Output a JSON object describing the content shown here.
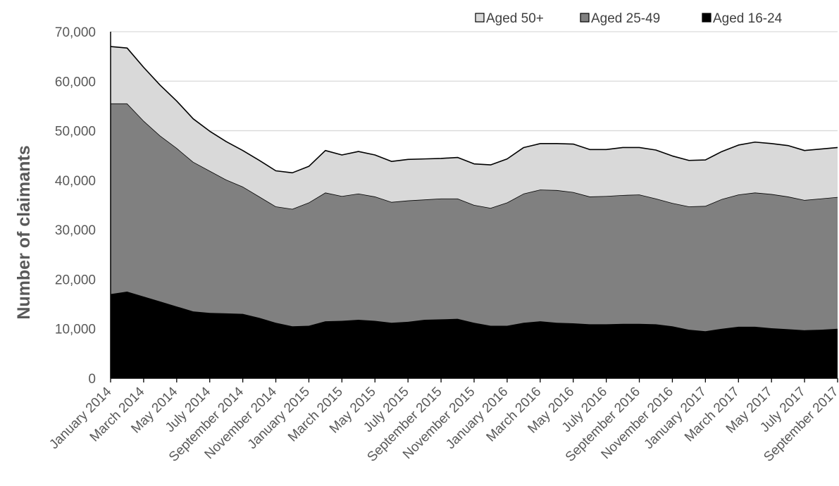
{
  "chart_data": {
    "type": "area",
    "stacked": true,
    "title": "",
    "xlabel": "",
    "ylabel": "Number of claimants",
    "ylim": [
      0,
      70000
    ],
    "yticks": [
      0,
      10000,
      20000,
      30000,
      40000,
      50000,
      60000,
      70000
    ],
    "ytick_labels": [
      "0",
      "10,000",
      "20,000",
      "30,000",
      "40,000",
      "50,000",
      "60,000",
      "70,000"
    ],
    "grid": "horizontal",
    "legend_position": "top",
    "x": [
      "January 2014",
      "February 2014",
      "March 2014",
      "April 2014",
      "May 2014",
      "June 2014",
      "July 2014",
      "August 2014",
      "September 2014",
      "October 2014",
      "November 2014",
      "December 2014",
      "January 2015",
      "February 2015",
      "March 2015",
      "April 2015",
      "May 2015",
      "June 2015",
      "July 2015",
      "August 2015",
      "September 2015",
      "October 2015",
      "November 2015",
      "December 2015",
      "January 2016",
      "February 2016",
      "March 2016",
      "April 2016",
      "May 2016",
      "June 2016",
      "July 2016",
      "August 2016",
      "September 2016",
      "October 2016",
      "November 2016",
      "December 2016",
      "January 2017",
      "February 2017",
      "March 2017",
      "April 2017",
      "May 2017",
      "June 2017",
      "July 2017",
      "August 2017",
      "September 2017"
    ],
    "x_tick_labels": [
      "January 2014",
      "March 2014",
      "May 2014",
      "July 2014",
      "September 2014",
      "November 2014",
      "January 2015",
      "March 2015",
      "May 2015",
      "July 2015",
      "September 2015",
      "November 2015",
      "January 2016",
      "March 2016",
      "May 2016",
      "July 2016",
      "September 2016",
      "November 2016",
      "January 2017",
      "March 2017",
      "May 2017",
      "July 2017",
      "September 2017"
    ],
    "series": [
      {
        "name": "Aged 16-24",
        "color": "#000000",
        "values": [
          17000,
          17500,
          16500,
          15500,
          14500,
          13500,
          13200,
          13100,
          13000,
          12200,
          11200,
          10500,
          10600,
          11500,
          11600,
          11800,
          11600,
          11200,
          11400,
          11800,
          11900,
          12000,
          11200,
          10600,
          10600,
          11200,
          11500,
          11200,
          11100,
          10900,
          10900,
          11000,
          11000,
          10900,
          10500,
          9800,
          9500,
          10000,
          10400,
          10400,
          10100,
          9900,
          9700,
          9800,
          10000
        ]
      },
      {
        "name": "Aged 25-49",
        "color": "#808080",
        "values": [
          38500,
          38000,
          35500,
          33500,
          32000,
          30200,
          28700,
          27000,
          25700,
          24500,
          23500,
          23700,
          24900,
          26000,
          25200,
          25500,
          25100,
          24400,
          24500,
          24300,
          24400,
          24300,
          23800,
          23800,
          24900,
          26100,
          26600,
          26800,
          26500,
          25800,
          25900,
          26000,
          26100,
          25400,
          24900,
          24900,
          25300,
          26200,
          26700,
          27100,
          27100,
          26800,
          26300,
          26500,
          26600
        ]
      },
      {
        "name": "Aged 50+",
        "color": "#d9d9d9",
        "values": [
          11500,
          11200,
          10800,
          10200,
          9500,
          8700,
          8000,
          7700,
          7300,
          7300,
          7200,
          7300,
          7300,
          8500,
          8300,
          8500,
          8400,
          8200,
          8300,
          8200,
          8100,
          8300,
          8300,
          8700,
          8800,
          9300,
          9300,
          9400,
          9700,
          9500,
          9400,
          9600,
          9500,
          9800,
          9500,
          9300,
          9300,
          9600,
          10000,
          10200,
          10200,
          10300,
          10000,
          10000,
          10000
        ]
      }
    ]
  }
}
